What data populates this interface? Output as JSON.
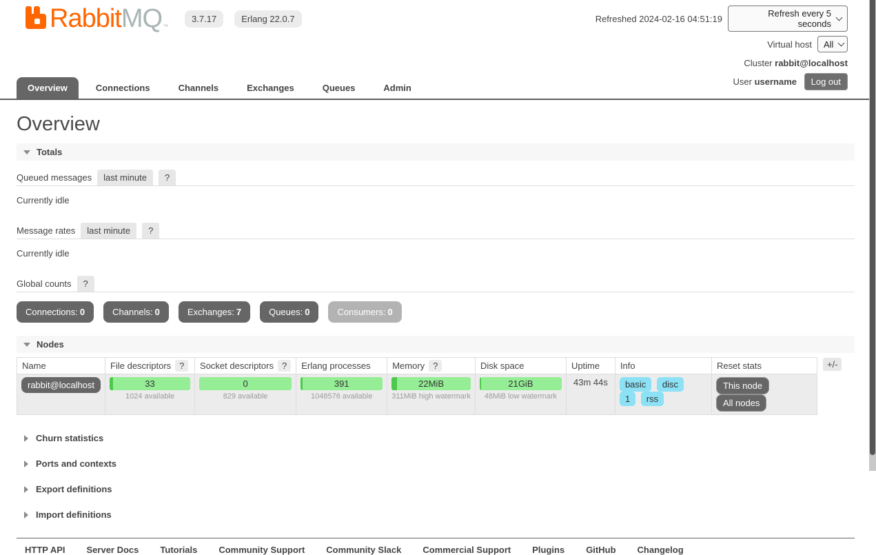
{
  "header": {
    "brand": {
      "rabbit": "Rabbit",
      "mq": "MQ",
      "tm": "™"
    },
    "badges": [
      "3.7.17",
      "Erlang 22.0.7"
    ],
    "refreshed": "Refreshed 2024-02-16 04:51:19",
    "refresh_interval": "Refresh every 5 seconds",
    "virtual_host_label": "Virtual host",
    "virtual_host_value": "All",
    "cluster_label": "Cluster",
    "cluster_name": "rabbit@localhost",
    "user_label": "User",
    "user_name": "username",
    "logout": "Log out"
  },
  "tabs": [
    {
      "label": "Overview",
      "active": true
    },
    {
      "label": "Connections",
      "active": false
    },
    {
      "label": "Channels",
      "active": false
    },
    {
      "label": "Exchanges",
      "active": false
    },
    {
      "label": "Queues",
      "active": false
    },
    {
      "label": "Admin",
      "active": false
    }
  ],
  "page_title": "Overview",
  "totals": {
    "title": "Totals",
    "queued_label": "Queued messages",
    "queued_tab": "last minute",
    "queued_help": "?",
    "queued_status": "Currently idle",
    "rates_label": "Message rates",
    "rates_tab": "last minute",
    "rates_help": "?",
    "rates_status": "Currently idle",
    "global_label": "Global counts",
    "global_help": "?",
    "counts": [
      {
        "label": "Connections:",
        "value": "0",
        "enabled": true
      },
      {
        "label": "Channels:",
        "value": "0",
        "enabled": true
      },
      {
        "label": "Exchanges:",
        "value": "7",
        "enabled": true
      },
      {
        "label": "Queues:",
        "value": "0",
        "enabled": true
      },
      {
        "label": "Consumers:",
        "value": "0",
        "enabled": false
      }
    ]
  },
  "nodes": {
    "title": "Nodes",
    "headers": {
      "name": "Name",
      "file_descriptors": "File descriptors",
      "socket_descriptors": "Socket descriptors",
      "erlang_processes": "Erlang processes",
      "memory": "Memory",
      "disk_space": "Disk space",
      "uptime": "Uptime",
      "info": "Info",
      "reset_stats": "Reset stats",
      "help": "?"
    },
    "row": {
      "name": "rabbit@localhost",
      "file_descriptors": {
        "value": "33",
        "sub": "1024 available",
        "used_pct": 4
      },
      "socket_descriptors": {
        "value": "0",
        "sub": "829 available",
        "used_pct": 0
      },
      "erlang_processes": {
        "value": "391",
        "sub": "1048576 available",
        "used_pct": 2
      },
      "memory": {
        "value": "22MiB",
        "sub": "311MiB high watermark",
        "used_pct": 7
      },
      "disk_space": {
        "value": "21GiB",
        "sub": "48MiB low watermark",
        "used_pct": 2
      },
      "uptime": "43m 44s",
      "info_badges": [
        "basic",
        "disc",
        "1",
        "rss"
      ],
      "reset_this": "This node",
      "reset_all": "All nodes"
    },
    "plus_minus": "+/-"
  },
  "sections": [
    {
      "label": "Churn statistics"
    },
    {
      "label": "Ports and contexts"
    },
    {
      "label": "Export definitions"
    },
    {
      "label": "Import definitions"
    }
  ],
  "footer": {
    "links": [
      "HTTP API",
      "Server Docs",
      "Tutorials",
      "Community Support",
      "Community Slack",
      "Commercial Support",
      "Plugins",
      "GitHub",
      "Changelog"
    ]
  },
  "colors": {
    "brand_orange": "#ff6600",
    "brand_gray": "#a9b4b4",
    "bar_green": "#95ee95",
    "bar_green_used": "#4cc94c",
    "info_blue": "#8ce1f5",
    "button_gray": "#666666"
  }
}
